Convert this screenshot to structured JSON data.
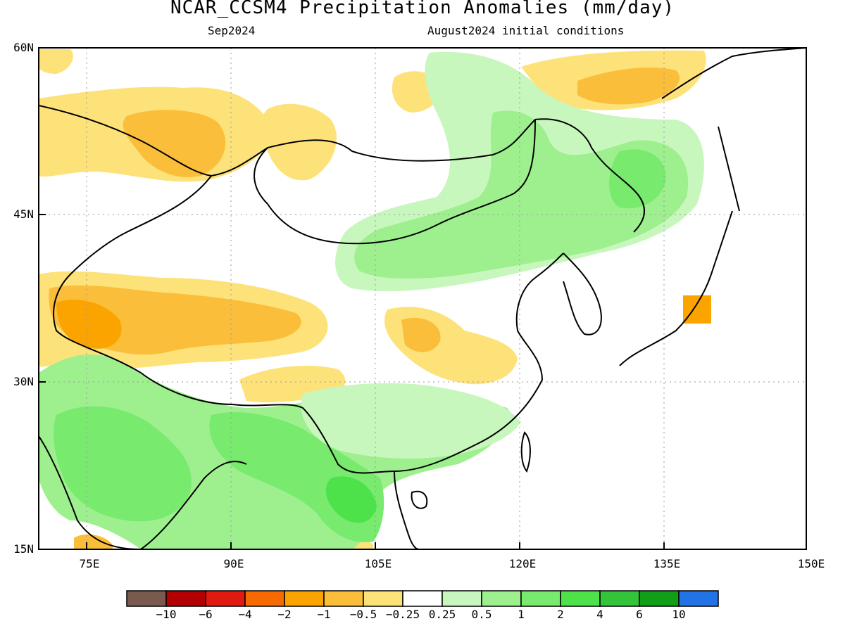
{
  "title": "NCAR_CCSM4 Precipitation Anomalies (mm/day)",
  "subtitle_left": "Sep2024",
  "subtitle_right": "August2024 initial conditions",
  "map": {
    "lon_range": [
      70,
      150
    ],
    "lat_range": [
      15,
      60
    ],
    "lat_labels": [
      "60N",
      "45N",
      "30N",
      "15N"
    ],
    "lon_labels": [
      "75E",
      "90E",
      "105E",
      "120E",
      "135E",
      "150E"
    ]
  },
  "colorbar": {
    "colors": [
      "#7a5a4f",
      "#b30000",
      "#e01a10",
      "#f76a00",
      "#fba400",
      "#fbbe3a",
      "#fde27a",
      "#ffffff",
      "#c8f7bd",
      "#9ef08f",
      "#78ea6e",
      "#4de24a",
      "#33c43a",
      "#109f17",
      "#2273e6"
    ],
    "labels": [
      "−10",
      "−6",
      "−4",
      "−2",
      "−1",
      "−0.5",
      "−0.25",
      "0.25",
      "0.5",
      "1",
      "2",
      "4",
      "6",
      "10"
    ]
  }
}
